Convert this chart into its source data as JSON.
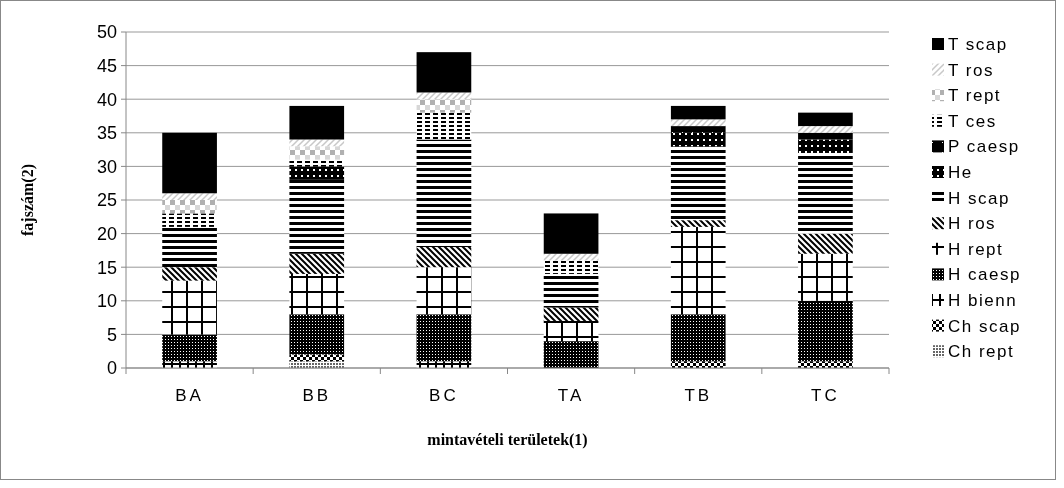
{
  "chart_data": {
    "type": "bar",
    "stacked": true,
    "xlabel": "mintavételi területek(1)",
    "ylabel": "fajszám(2)",
    "categories": [
      "BA",
      "BB",
      "BC",
      "TA",
      "TB",
      "TC"
    ],
    "ylim": [
      0,
      50
    ],
    "yticks": [
      0,
      5,
      10,
      15,
      20,
      25,
      30,
      35,
      40,
      45,
      50
    ],
    "grid": "y",
    "legend": "right",
    "series": [
      {
        "name": "Ch rept",
        "color": "#000000",
        "values": [
          0,
          1,
          0,
          0,
          0,
          0
        ]
      },
      {
        "name": "Ch scap",
        "color": "#000000",
        "values": [
          0,
          1,
          0,
          0,
          1,
          1
        ]
      },
      {
        "name": "H bienn",
        "color": "#000000",
        "values": [
          1,
          0,
          1,
          0,
          0,
          0
        ]
      },
      {
        "name": "H caesp",
        "color": "#000000",
        "values": [
          4,
          6,
          7,
          4,
          7,
          9
        ]
      },
      {
        "name": "H rept",
        "color": "#000000",
        "values": [
          8,
          6,
          7,
          3,
          13,
          7
        ]
      },
      {
        "name": "H ros",
        "color": "#000000",
        "values": [
          2,
          3,
          3,
          2,
          1,
          3
        ]
      },
      {
        "name": "H scap",
        "color": "#000000",
        "values": [
          6,
          11,
          16,
          5,
          11,
          12
        ]
      },
      {
        "name": "He",
        "color": "#000000",
        "values": [
          0,
          2,
          0,
          0,
          2,
          2
        ]
      },
      {
        "name": "P caesp",
        "color": "#000000",
        "values": [
          0,
          0,
          0,
          0,
          1,
          1
        ]
      },
      {
        "name": "T ces",
        "color": "#000000",
        "values": [
          2,
          1,
          4,
          2,
          0,
          0
        ]
      },
      {
        "name": "T rept",
        "color": "#b0b0b0",
        "values": [
          2,
          2,
          2,
          0,
          0,
          0
        ]
      },
      {
        "name": "T ros",
        "color": "#c8c8c8",
        "values": [
          1,
          1,
          1,
          1,
          1,
          1
        ]
      },
      {
        "name": "T scap",
        "color": "#000000",
        "values": [
          9,
          5,
          6,
          6,
          2,
          2
        ]
      }
    ]
  }
}
